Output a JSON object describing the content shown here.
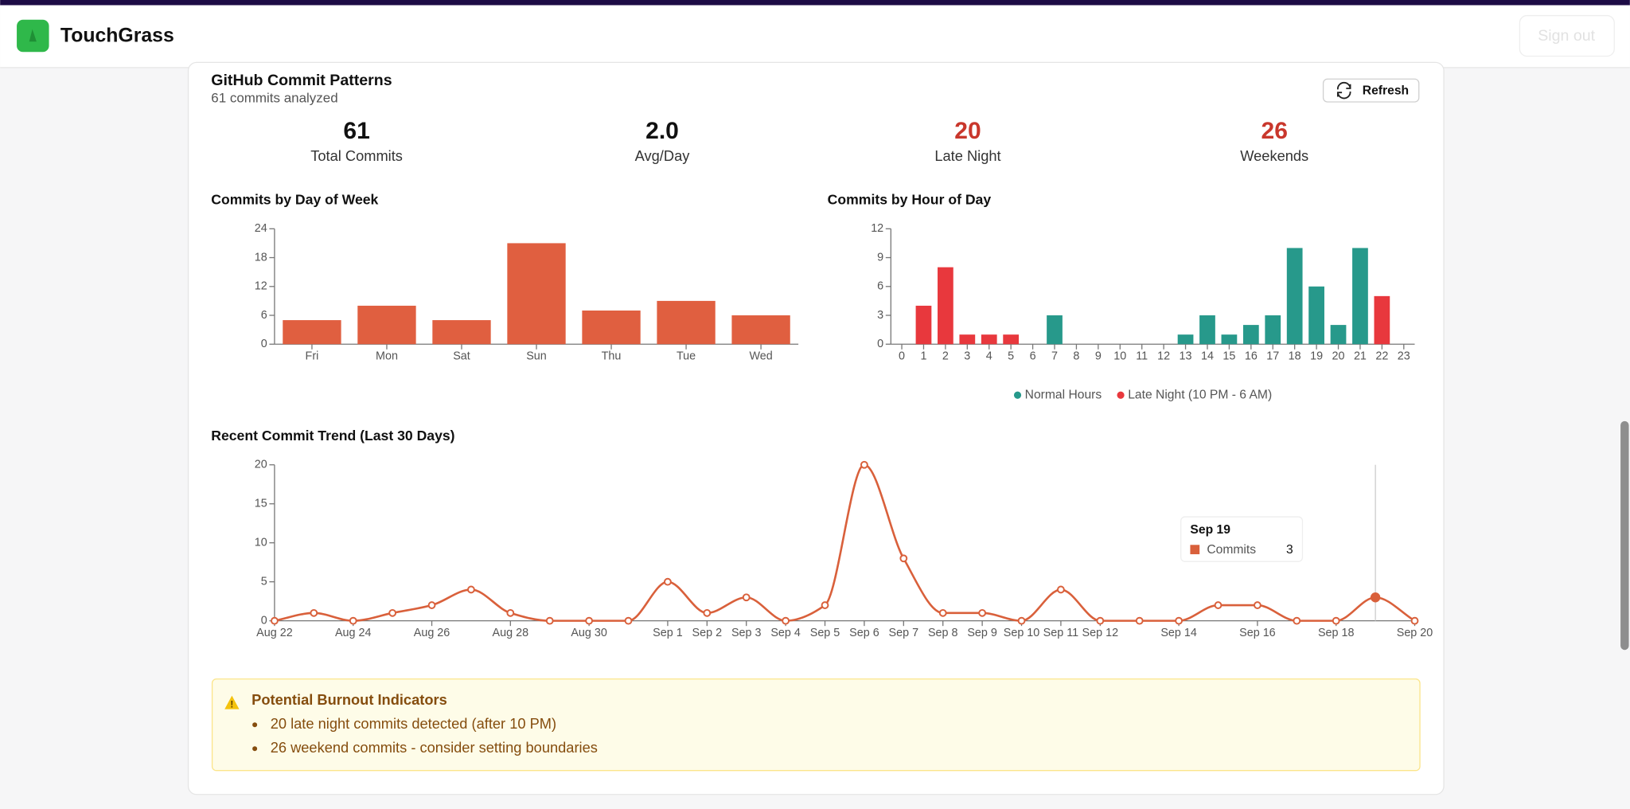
{
  "header": {
    "app_name": "TouchGrass",
    "sign_out": "Sign out"
  },
  "card": {
    "title": "GitHub Commit Patterns",
    "subtitle": "61 commits analyzed",
    "refresh": "Refresh"
  },
  "stats": [
    {
      "value": 61,
      "label": "Total Commits"
    },
    {
      "value": "2.0",
      "label": "Avg/Day"
    },
    {
      "value": 20,
      "label": "Late Night"
    },
    {
      "value": 26,
      "label": "Weekends"
    }
  ],
  "chart_data": [
    {
      "type": "bar",
      "title": "Commits by Day of Week",
      "categories": [
        "Fri",
        "Mon",
        "Sat",
        "Sun",
        "Thu",
        "Tue",
        "Wed"
      ],
      "values": [
        5,
        8,
        5,
        21,
        7,
        9,
        6
      ],
      "color": "#e05f40",
      "ylim": [
        0,
        24
      ],
      "yticks": [
        0,
        6,
        12,
        18,
        24
      ]
    },
    {
      "type": "bar",
      "title": "Commits by Hour of Day",
      "categories": [
        "0",
        "1",
        "2",
        "3",
        "4",
        "5",
        "6",
        "7",
        "8",
        "9",
        "10",
        "11",
        "12",
        "13",
        "14",
        "15",
        "16",
        "17",
        "18",
        "19",
        "20",
        "21",
        "22",
        "23"
      ],
      "series": [
        {
          "name": "Normal Hours",
          "color": "#27998b",
          "values": [
            null,
            null,
            null,
            null,
            null,
            null,
            null,
            3,
            0,
            0,
            0,
            0,
            0,
            1,
            3,
            1,
            2,
            3,
            10,
            6,
            2,
            10,
            null,
            null
          ]
        },
        {
          "name": "Late Night (10 PM - 6 AM)",
          "color": "#e8383d",
          "values": [
            0,
            4,
            8,
            1,
            1,
            1,
            0,
            null,
            null,
            null,
            null,
            null,
            null,
            null,
            null,
            null,
            null,
            null,
            null,
            null,
            null,
            null,
            5,
            0
          ]
        }
      ],
      "ylim": [
        0,
        12
      ],
      "yticks": [
        0,
        3,
        6,
        9,
        12
      ],
      "legend": "bottom"
    },
    {
      "type": "line",
      "title": "Recent Commit Trend (Last 30 Days)",
      "categories": [
        "Aug 22",
        null,
        "Aug 24",
        null,
        "Aug 26",
        null,
        "Aug 28",
        null,
        "Aug 30",
        null,
        "Sep 1",
        "Sep 2",
        "Sep 3",
        "Sep 4",
        "Sep 5",
        "Sep 6",
        "Sep 7",
        "Sep 8",
        "Sep 9",
        "Sep 10",
        "Sep 11",
        "Sep 12",
        null,
        "Sep 14",
        null,
        "Sep 16",
        null,
        "Sep 18",
        null,
        "Sep 20"
      ],
      "series": [
        {
          "name": "Commits",
          "color": "#d9603b",
          "values": [
            0,
            1,
            0,
            1,
            2,
            4,
            1,
            0,
            0,
            0,
            5,
            1,
            3,
            0,
            2,
            20,
            8,
            1,
            1,
            0,
            4,
            0,
            0,
            0,
            2,
            2,
            0,
            0,
            3,
            0
          ]
        }
      ],
      "ylim": [
        0,
        20
      ],
      "yticks": [
        0,
        5,
        10,
        15,
        20
      ],
      "tooltip": {
        "label": "Sep 19",
        "value": 3
      }
    }
  ],
  "alert": {
    "title": "Potential Burnout Indicators",
    "items": [
      "20 late night commits detected (after 10 PM)",
      "26 weekend commits - consider setting boundaries"
    ]
  }
}
